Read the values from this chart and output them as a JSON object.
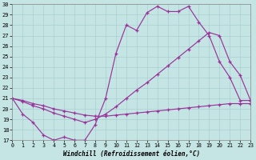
{
  "xlabel": "Windchill (Refroidissement éolien,°C)",
  "xlim": [
    0,
    23
  ],
  "ylim": [
    17,
    30
  ],
  "xticks": [
    0,
    1,
    2,
    3,
    4,
    5,
    6,
    7,
    8,
    9,
    10,
    11,
    12,
    13,
    14,
    15,
    16,
    17,
    18,
    19,
    20,
    21,
    22,
    23
  ],
  "yticks": [
    17,
    18,
    19,
    20,
    21,
    22,
    23,
    24,
    25,
    26,
    27,
    28,
    29,
    30
  ],
  "background_color": "#c5e5e5",
  "line_color": "#993399",
  "grid_color": "#aacfcf",
  "line1_x": [
    0,
    1,
    2,
    3,
    4,
    5,
    6,
    7,
    8,
    9,
    10,
    11,
    12,
    13,
    14,
    15,
    16,
    17,
    18,
    19,
    20,
    21,
    22,
    23
  ],
  "line1_y": [
    21,
    19.5,
    18.7,
    17.5,
    17.0,
    17.3,
    17.0,
    17.0,
    18.5,
    21.0,
    25.3,
    28.0,
    27.5,
    29.2,
    29.8,
    29.3,
    29.3,
    29.8,
    28.3,
    27.0,
    24.5,
    23.0,
    20.8,
    20.8
  ],
  "line2_x": [
    0,
    1,
    2,
    3,
    4,
    5,
    6,
    7,
    8,
    9,
    10,
    11,
    12,
    13,
    14,
    15,
    16,
    17,
    18,
    19,
    20,
    21,
    22,
    23
  ],
  "line2_y": [
    21,
    20.7,
    20.3,
    20.0,
    19.6,
    19.3,
    19.0,
    18.7,
    19.0,
    19.5,
    20.2,
    21.0,
    21.8,
    22.5,
    23.3,
    24.1,
    24.9,
    25.7,
    26.5,
    27.3,
    27.0,
    24.5,
    23.2,
    20.8
  ],
  "line3_x": [
    0,
    1,
    2,
    3,
    4,
    5,
    6,
    7,
    8,
    9,
    10,
    11,
    12,
    13,
    14,
    15,
    16,
    17,
    18,
    19,
    20,
    21,
    22,
    23
  ],
  "line3_y": [
    21,
    20.8,
    20.5,
    20.3,
    20.0,
    19.8,
    19.6,
    19.4,
    19.3,
    19.3,
    19.4,
    19.5,
    19.6,
    19.7,
    19.8,
    19.9,
    20.0,
    20.1,
    20.2,
    20.3,
    20.4,
    20.5,
    20.5,
    20.5
  ]
}
